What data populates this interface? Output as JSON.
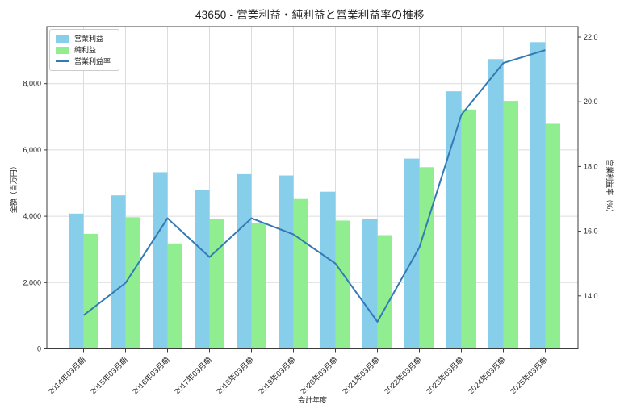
{
  "colors": {
    "operating_profit": "#87CEEB",
    "net_profit": "#90EE90",
    "margin_line": "#3379B5",
    "grid": "#DCDCDC",
    "spine": "#3C3C3C",
    "text": "#262626"
  },
  "legend": {
    "position": "upper left",
    "items": [
      {
        "label": "営業利益",
        "swatch": "bar",
        "color_key": "operating_profit"
      },
      {
        "label": "純利益",
        "swatch": "bar",
        "color_key": "net_profit"
      },
      {
        "label": "営業利益率",
        "swatch": "line",
        "color_key": "margin_line"
      }
    ]
  },
  "axes": {
    "x": {
      "label": "会計年度",
      "tick_rotation_deg": 45
    },
    "y_left": {
      "label": "金額（百万円）",
      "ticks": [
        {
          "value": 0,
          "label": "0"
        },
        {
          "value": 2000,
          "label": "2,000"
        },
        {
          "value": 4000,
          "label": "4,000"
        },
        {
          "value": 6000,
          "label": "6,000"
        },
        {
          "value": 8000,
          "label": "8,000"
        }
      ]
    },
    "y_right": {
      "label": "営業利益率（%）",
      "ticks": [
        {
          "value": 14.0,
          "label": "14.0"
        },
        {
          "value": 16.0,
          "label": "16.0"
        },
        {
          "value": 18.0,
          "label": "18.0"
        },
        {
          "value": 20.0,
          "label": "20.0"
        },
        {
          "value": 22.0,
          "label": "22.0"
        }
      ]
    }
  },
  "chart_data": {
    "type": "combo-bar-line",
    "title": "43650 - 営業利益・純利益と営業利益率の推移",
    "xlabel": "会計年度",
    "ylabel_left": "金額（百万円）",
    "ylabel_right": "営業利益率（%）",
    "grid": true,
    "legend_position": "upper left",
    "y_left_range": [
      0,
      9720
    ],
    "y_right_range": [
      12.4,
      22.3
    ],
    "categories": [
      "2014年03月期",
      "2015年03月期",
      "2016年03月期",
      "2017年03月期",
      "2018年03月期",
      "2019年03月期",
      "2020年03月期",
      "2021年03月期",
      "2022年03月期",
      "2023年03月期",
      "2024年03月期",
      "2025年03月期"
    ],
    "series": [
      {
        "name": "営業利益",
        "type": "bar",
        "axis": "left",
        "color": "#87CEEB",
        "values": [
          4080,
          4630,
          5330,
          4790,
          5270,
          5230,
          4740,
          3910,
          5740,
          7770,
          8740,
          9250
        ]
      },
      {
        "name": "純利益",
        "type": "bar",
        "axis": "left",
        "color": "#90EE90",
        "values": [
          3470,
          3970,
          3180,
          3930,
          3790,
          4520,
          3870,
          3430,
          5480,
          7220,
          7480,
          6790
        ]
      },
      {
        "name": "営業利益率",
        "type": "line",
        "axis": "right",
        "color": "#3379B5",
        "values": [
          13.4,
          14.4,
          16.4,
          15.2,
          16.4,
          15.9,
          15.0,
          13.2,
          15.5,
          19.6,
          21.2,
          21.6
        ]
      }
    ]
  }
}
